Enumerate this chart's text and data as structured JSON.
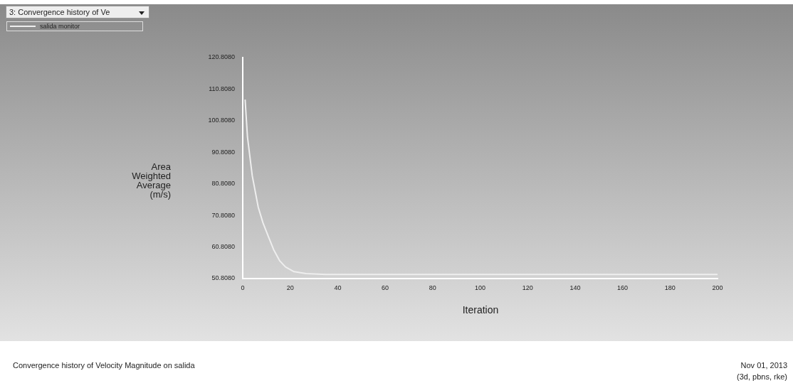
{
  "chart_data": {
    "type": "line",
    "xlabel": "Iteration",
    "ylabel": "Area Weighted Average (m/s)",
    "annotations": [
      "3: Convergence history of Ve",
      "Convergence history of Velocity Magnitude on salida",
      "Nov 01, 2013",
      "(3d, pbns, rke)"
    ],
    "series": [
      {
        "name": "salida monitor",
        "color": "#eeeeee",
        "x": [
          1,
          2,
          4,
          6.5,
          8.5,
          10.8,
          13,
          15.6,
          18,
          21.6,
          26.7,
          35,
          60,
          100,
          150,
          200
        ],
        "values": [
          107.5,
          95.6,
          83.4,
          73.5,
          68.5,
          64.1,
          60,
          56.4,
          54.5,
          53,
          52.4,
          52.1,
          52.1,
          52.1,
          52.1,
          52.1
        ]
      }
    ],
    "xlim": [
      0,
      200
    ],
    "xticks": [
      0,
      20,
      40,
      60,
      80,
      100,
      120,
      140,
      160,
      180,
      200
    ],
    "ylim": [
      50.808,
      120.808
    ],
    "yticks": [
      {
        "value": 50.808,
        "label": "50.8080"
      },
      {
        "value": 60.808,
        "label": "60.8080"
      },
      {
        "value": 70.808,
        "label": "70.8080"
      },
      {
        "value": 80.808,
        "label": "80.8080"
      },
      {
        "value": 90.808,
        "label": "90.8080"
      },
      {
        "value": 100.808,
        "label": "100.8080"
      },
      {
        "value": 110.808,
        "label": "110.8080"
      },
      {
        "value": 120.808,
        "label": "120.8080"
      }
    ],
    "grid": false,
    "legend": "top left",
    "marker": "none",
    "line_style": "solid"
  }
}
